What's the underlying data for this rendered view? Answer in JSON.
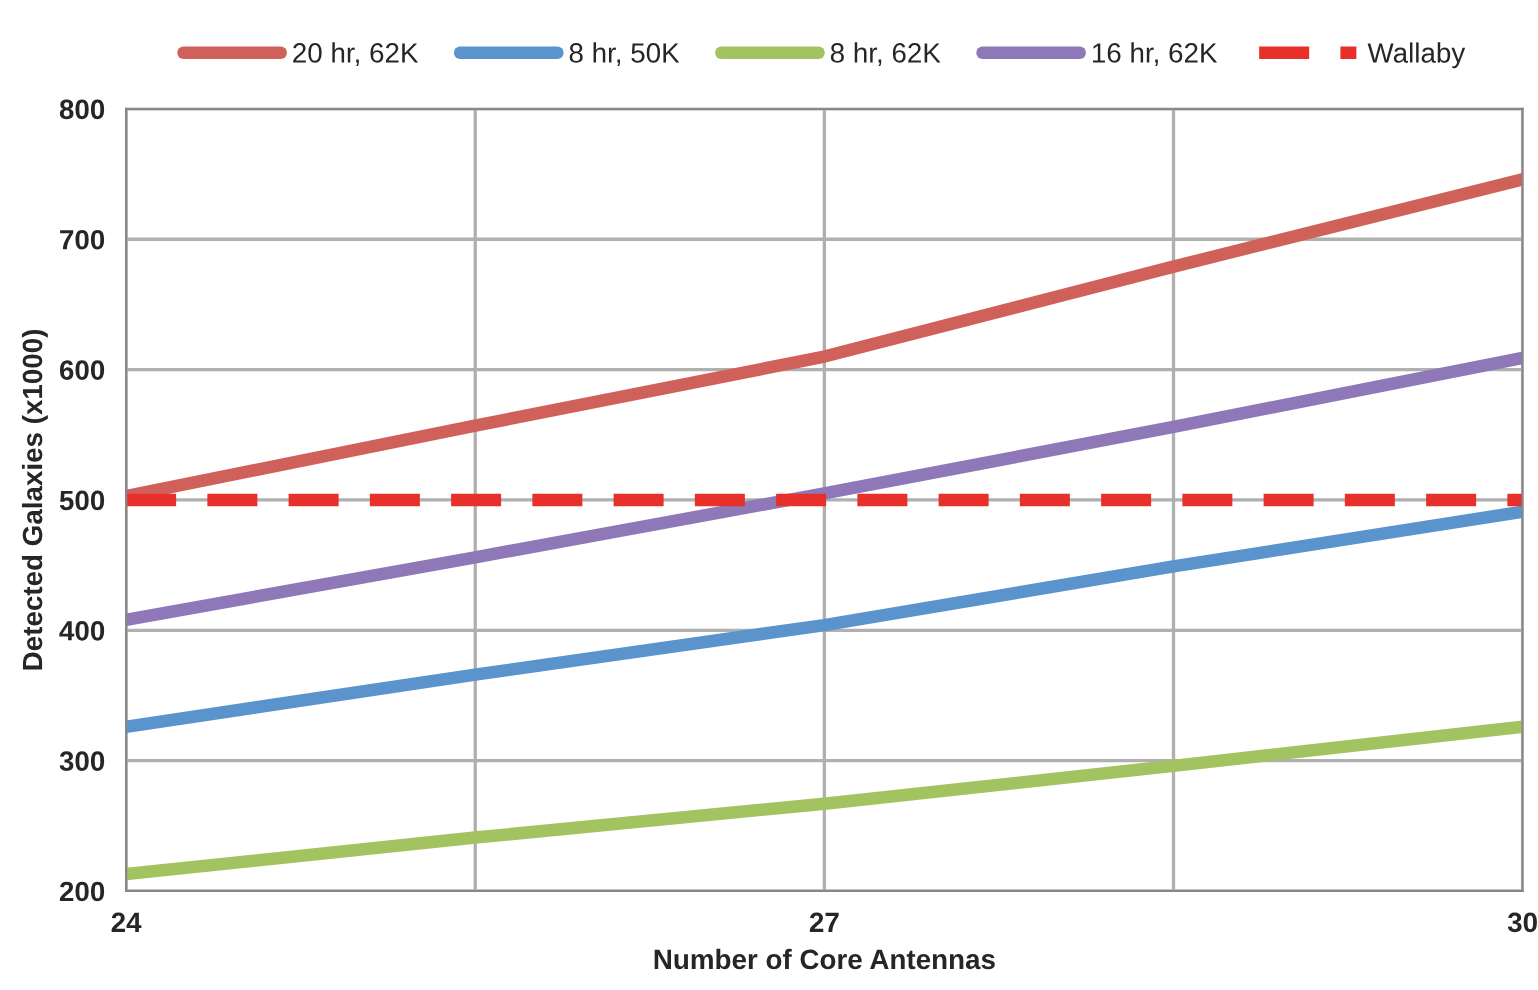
{
  "chart_data": {
    "type": "line",
    "xlabel": "Number of Core Antennas",
    "ylabel": "Detected Galaxies (x1000)",
    "x": [
      24,
      25.5,
      27,
      28.5,
      30
    ],
    "series": [
      {
        "name": "20 hr, 62K",
        "color": "#d0605a",
        "values": [
          503,
          557,
          610,
          679,
          746
        ]
      },
      {
        "name": "8 hr, 50K",
        "color": "#5b93cc",
        "values": [
          326,
          366,
          404,
          449,
          491
        ]
      },
      {
        "name": "8 hr, 62K",
        "color": "#a2c35f",
        "values": [
          213,
          241,
          267,
          296,
          326
        ]
      },
      {
        "name": "16 hr, 62K",
        "color": "#8e78b8",
        "values": [
          408,
          456,
          505,
          556,
          609
        ]
      },
      {
        "name": "Wallaby",
        "color": "#e8302a",
        "values": [
          500,
          500,
          500,
          500,
          500
        ],
        "line_style": "dashed"
      }
    ],
    "xlim": [
      24,
      30
    ],
    "xticks": [
      24,
      {
        "value": 25.5,
        "label": null
      },
      27,
      {
        "value": 28.5,
        "label": null
      },
      30
    ],
    "ylim": [
      200,
      800
    ],
    "yticks": [
      200,
      300,
      400,
      500,
      600,
      700,
      800
    ],
    "grid": true,
    "legend": "top",
    "marker": "none"
  }
}
